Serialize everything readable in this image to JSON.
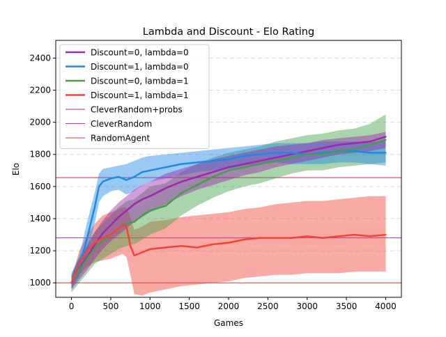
{
  "chart_data": {
    "type": "line",
    "title": "Lambda and Discount - Elo Rating",
    "xlabel": "Games",
    "ylabel": "Elo",
    "xlim": [
      -200,
      4200
    ],
    "ylim": [
      910,
      2510
    ],
    "x_ticks": [
      0,
      500,
      1000,
      1500,
      2000,
      2500,
      3000,
      3500,
      4000
    ],
    "x_tick_labels": [
      "0",
      "500",
      "1000",
      "1500",
      "2000",
      "2500",
      "3000",
      "3500",
      "4000"
    ],
    "y_ticks": [
      1000,
      1200,
      1400,
      1600,
      1800,
      2000,
      2200,
      2400
    ],
    "y_tick_labels": [
      "1000",
      "1200",
      "1400",
      "1600",
      "1800",
      "2000",
      "2200",
      "2400"
    ],
    "grid": "horizontal dashed",
    "legend_position": "top-left",
    "series": [
      {
        "name": "Discount=0, lambda=0",
        "color": "#9c27b0",
        "x": [
          0,
          100,
          200,
          300,
          400,
          500,
          600,
          700,
          800,
          900,
          1000,
          1200,
          1400,
          1600,
          1800,
          2000,
          2200,
          2400,
          2600,
          2800,
          3000,
          3200,
          3400,
          3600,
          3800,
          4000
        ],
        "y": [
          1000,
          1090,
          1160,
          1240,
          1310,
          1360,
          1410,
          1450,
          1490,
          1520,
          1540,
          1590,
          1630,
          1660,
          1690,
          1720,
          1740,
          1760,
          1780,
          1800,
          1820,
          1840,
          1860,
          1870,
          1880,
          1910
        ],
        "band_low": [
          960,
          1020,
          1080,
          1150,
          1210,
          1260,
          1300,
          1340,
          1380,
          1410,
          1440,
          1490,
          1540,
          1580,
          1610,
          1640,
          1670,
          1690,
          1720,
          1740,
          1760,
          1780,
          1800,
          1810,
          1820,
          1840
        ],
        "band_high": [
          1040,
          1150,
          1230,
          1320,
          1390,
          1450,
          1500,
          1540,
          1580,
          1610,
          1630,
          1680,
          1710,
          1740,
          1770,
          1790,
          1810,
          1830,
          1850,
          1860,
          1870,
          1890,
          1900,
          1910,
          1920,
          1940
        ]
      },
      {
        "name": "Discount=1, lambda=0",
        "color": "#1e88e5",
        "x": [
          0,
          100,
          200,
          300,
          350,
          400,
          500,
          600,
          700,
          800,
          900,
          1000,
          1200,
          1400,
          1600,
          1800,
          2000,
          2200,
          2400,
          2600,
          2800,
          3000,
          3200,
          3400,
          3600,
          3800,
          4000
        ],
        "y": [
          1000,
          1100,
          1280,
          1480,
          1600,
          1630,
          1650,
          1660,
          1640,
          1660,
          1690,
          1700,
          1720,
          1740,
          1750,
          1760,
          1770,
          1790,
          1800,
          1810,
          1810,
          1800,
          1810,
          1820,
          1820,
          1810,
          1810
        ],
        "band_low": [
          960,
          1040,
          1180,
          1380,
          1500,
          1540,
          1570,
          1580,
          1550,
          1570,
          1610,
          1630,
          1650,
          1670,
          1690,
          1700,
          1710,
          1730,
          1740,
          1750,
          1740,
          1740,
          1740,
          1750,
          1750,
          1740,
          1730
        ],
        "band_high": [
          1050,
          1170,
          1380,
          1570,
          1680,
          1710,
          1720,
          1730,
          1740,
          1760,
          1780,
          1790,
          1800,
          1810,
          1820,
          1830,
          1840,
          1850,
          1860,
          1870,
          1870,
          1870,
          1880,
          1880,
          1880,
          1880,
          1880
        ]
      },
      {
        "name": "Discount=0, lambda=1",
        "color": "#43a047",
        "x": [
          0,
          100,
          200,
          300,
          400,
          500,
          600,
          700,
          800,
          900,
          1000,
          1200,
          1400,
          1600,
          1800,
          2000,
          2200,
          2400,
          2600,
          2800,
          3000,
          3200,
          3400,
          3600,
          3800,
          4000
        ],
        "y": [
          1000,
          1080,
          1150,
          1220,
          1260,
          1300,
          1340,
          1370,
          1380,
          1420,
          1450,
          1480,
          1560,
          1610,
          1660,
          1700,
          1720,
          1740,
          1760,
          1780,
          1800,
          1800,
          1820,
          1830,
          1860,
          1890
        ],
        "band_low": [
          940,
          1000,
          1060,
          1120,
          1150,
          1180,
          1210,
          1230,
          1240,
          1270,
          1300,
          1340,
          1420,
          1480,
          1530,
          1570,
          1600,
          1620,
          1650,
          1680,
          1700,
          1700,
          1720,
          1730,
          1740,
          1750
        ],
        "band_high": [
          1060,
          1160,
          1240,
          1320,
          1370,
          1420,
          1470,
          1510,
          1520,
          1560,
          1600,
          1620,
          1690,
          1740,
          1780,
          1810,
          1830,
          1850,
          1880,
          1900,
          1920,
          1930,
          1950,
          1960,
          1990,
          2050
        ]
      },
      {
        "name": "Discount=1, lambda=1",
        "color": "#f44336",
        "x": [
          0,
          100,
          200,
          300,
          400,
          500,
          600,
          650,
          700,
          750,
          800,
          900,
          1000,
          1200,
          1400,
          1600,
          1800,
          2000,
          2200,
          2400,
          2600,
          2800,
          3000,
          3200,
          3400,
          3600,
          3800,
          4000
        ],
        "y": [
          1000,
          1120,
          1200,
          1250,
          1280,
          1300,
          1340,
          1360,
          1350,
          1230,
          1170,
          1190,
          1210,
          1220,
          1230,
          1220,
          1240,
          1250,
          1270,
          1280,
          1280,
          1280,
          1290,
          1280,
          1290,
          1300,
          1290,
          1300
        ],
        "band_low": [
          980,
          1050,
          1100,
          1130,
          1140,
          1150,
          1170,
          1180,
          1160,
          1050,
          930,
          920,
          940,
          960,
          980,
          990,
          1000,
          1010,
          1030,
          1040,
          1050,
          1050,
          1060,
          1060,
          1060,
          1070,
          1070,
          1070
        ],
        "band_high": [
          1030,
          1200,
          1300,
          1370,
          1420,
          1440,
          1460,
          1470,
          1470,
          1410,
          1330,
          1350,
          1380,
          1390,
          1410,
          1420,
          1430,
          1440,
          1460,
          1470,
          1490,
          1500,
          1510,
          1510,
          1520,
          1530,
          1540,
          1540
        ]
      }
    ],
    "reference_lines": [
      {
        "name": "CleverRandom+probs",
        "y": 1655,
        "color": "#d81b60"
      },
      {
        "name": "CleverRandom",
        "y": 1280,
        "color": "#b32cc4"
      },
      {
        "name": "RandomAgent",
        "y": 1000,
        "color": "#e53935"
      }
    ]
  }
}
